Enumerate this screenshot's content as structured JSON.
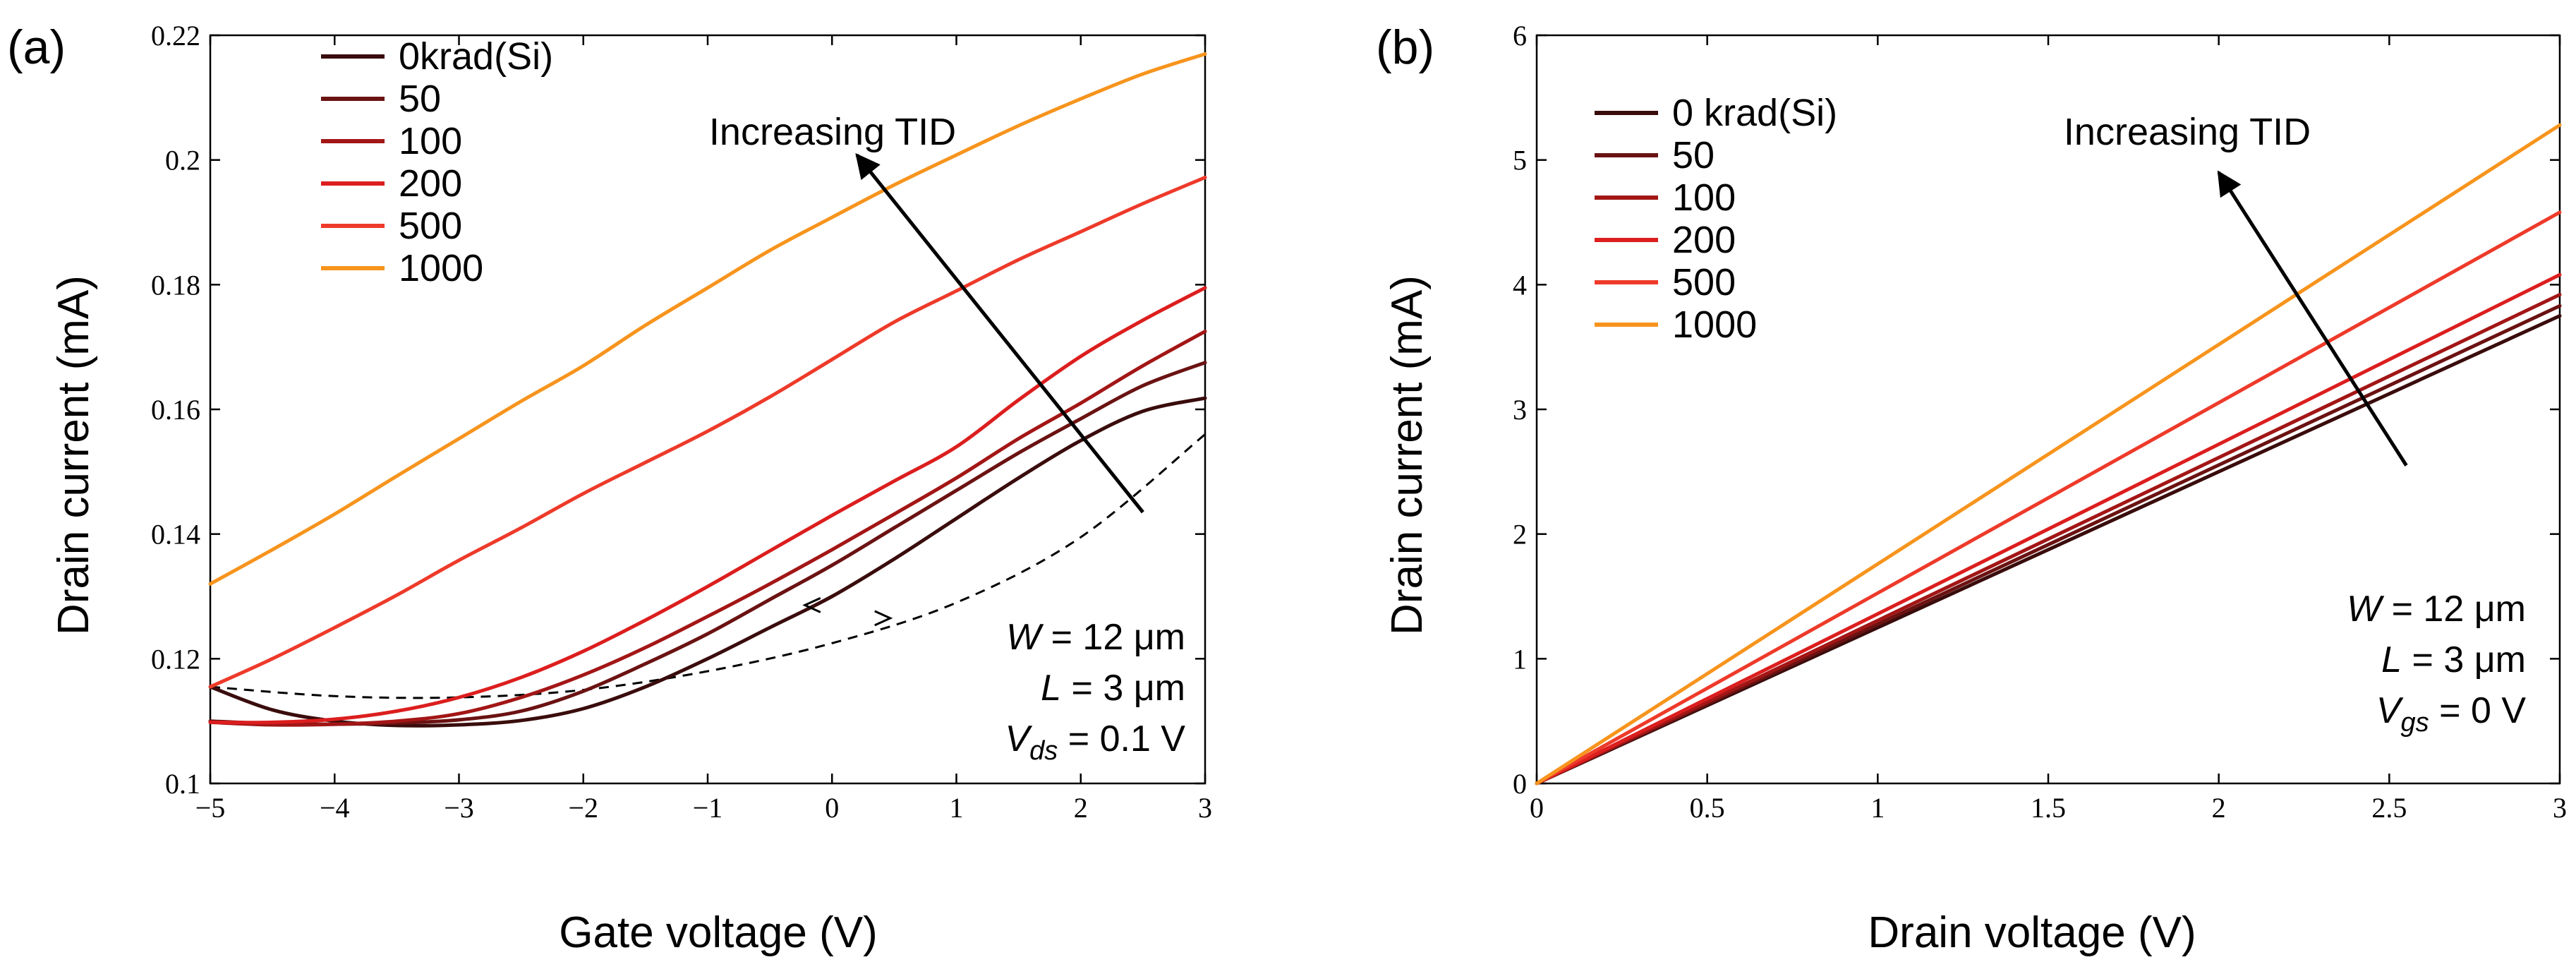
{
  "figure": {
    "background": "#ffffff"
  },
  "chart_data": [
    {
      "panel_label": "(a)",
      "type": "line",
      "xlabel": "Gate voltage (V)",
      "ylabel": "Drain current (mA)",
      "xlim": [
        -5,
        3
      ],
      "ylim": [
        0.1,
        0.22
      ],
      "xticks": [
        -5,
        -4,
        -3,
        -2,
        -1,
        0,
        1,
        2,
        3
      ],
      "yticks": [
        0.1,
        0.12,
        0.14,
        0.16,
        0.18,
        0.2,
        0.22
      ],
      "xtick_labels": [
        "−5",
        "−4",
        "−3",
        "−2",
        "−1",
        "0",
        "1",
        "2",
        "3"
      ],
      "ytick_labels": [
        "0.1",
        "0.12",
        "0.14",
        "0.16",
        "0.18",
        "0.2",
        "0.22"
      ],
      "legend": {
        "location": "top-left",
        "entries": [
          "0krad(Si)",
          "50",
          "100",
          "200",
          "500",
          "1000"
        ]
      },
      "x": [
        -5,
        -4.5,
        -4,
        -3.5,
        -3,
        -2.5,
        -2,
        -1.5,
        -1,
        -0.5,
        0,
        0.5,
        1,
        1.5,
        2,
        2.5,
        3
      ],
      "series": [
        {
          "name": "0krad(Si)",
          "color": "#3a0c0c",
          "values": [
            0.1155,
            0.1118,
            0.11,
            0.1093,
            0.1094,
            0.1101,
            0.112,
            0.1155,
            0.12,
            0.125,
            0.13,
            0.136,
            0.1425,
            0.149,
            0.155,
            0.1597,
            0.1618
          ]
        },
        {
          "name": "50",
          "color": "#6b1212",
          "values": [
            0.11,
            0.1096,
            0.1095,
            0.1097,
            0.1102,
            0.1116,
            0.1148,
            0.1192,
            0.124,
            0.1295,
            0.135,
            0.141,
            0.147,
            0.153,
            0.1585,
            0.1638,
            0.1675
          ]
        },
        {
          "name": "100",
          "color": "#a31616",
          "values": [
            0.1098,
            0.1094,
            0.1095,
            0.11,
            0.1112,
            0.1138,
            0.1174,
            0.1218,
            0.1268,
            0.132,
            0.1375,
            0.1432,
            0.149,
            0.1553,
            0.161,
            0.167,
            0.1725
          ]
        },
        {
          "name": "200",
          "color": "#dc1e1e",
          "values": [
            0.1098,
            0.1098,
            0.1103,
            0.1116,
            0.1138,
            0.117,
            0.1212,
            0.1262,
            0.1316,
            0.1373,
            0.143,
            0.1485,
            0.154,
            0.1615,
            0.1685,
            0.1743,
            0.1795
          ]
        },
        {
          "name": "500",
          "color": "#ee3a2a",
          "values": [
            0.1155,
            0.12,
            0.125,
            0.1302,
            0.1358,
            0.141,
            0.1465,
            0.1515,
            0.1565,
            0.162,
            0.168,
            0.174,
            0.179,
            0.184,
            0.1885,
            0.193,
            0.1972
          ]
        },
        {
          "name": "1000",
          "color": "#f7941d",
          "values": [
            0.132,
            0.1375,
            0.1432,
            0.1493,
            0.1553,
            0.1613,
            0.167,
            0.1735,
            0.1795,
            0.1855,
            0.1908,
            0.196,
            0.2008,
            0.2055,
            0.2098,
            0.2138,
            0.217
          ]
        }
      ],
      "reference_curve": {
        "style": "dashed",
        "color": "#000000",
        "x": [
          -5,
          -4,
          -3,
          -2,
          -1,
          0,
          1,
          2,
          3
        ],
        "values": [
          0.1155,
          0.114,
          0.1138,
          0.115,
          0.118,
          0.1225,
          0.129,
          0.1395,
          0.156
        ]
      },
      "annotations": {
        "arrow_label": "Increasing TID",
        "arrow": {
          "from": [
            2.5,
            0.1435
          ],
          "to": [
            0.2,
            0.2008
          ]
        },
        "small_arrows": [
          {
            "at": [
              -0.15,
              0.1286
            ],
            "direction": "left"
          },
          {
            "at": [
              0.4,
              0.1265
            ],
            "direction": "right"
          }
        ],
        "params": [
          {
            "symbol": "W",
            "sub": "",
            "text": " = 12 μm"
          },
          {
            "symbol": "L",
            "sub": "",
            "text": " = 3 μm"
          },
          {
            "symbol": "V",
            "sub": "ds",
            "text": " = 0.1 V"
          }
        ]
      }
    },
    {
      "panel_label": "(b)",
      "type": "line",
      "xlabel": "Drain voltage (V)",
      "ylabel": "Drain current (mA)",
      "xlim": [
        0,
        3
      ],
      "ylim": [
        0,
        6
      ],
      "xticks": [
        0,
        0.5,
        1,
        1.5,
        2,
        2.5,
        3
      ],
      "yticks": [
        0,
        1,
        2,
        3,
        4,
        5,
        6
      ],
      "xtick_labels": [
        "0",
        "0.5",
        "1",
        "1.5",
        "2",
        "2.5",
        "3"
      ],
      "ytick_labels": [
        "0",
        "1",
        "2",
        "3",
        "4",
        "5",
        "6"
      ],
      "legend": {
        "location": "top-left",
        "entries": [
          "0 krad(Si)",
          "50",
          "100",
          "200",
          "500",
          "1000"
        ]
      },
      "x": [
        0,
        3
      ],
      "series": [
        {
          "name": "0 krad(Si)",
          "color": "#3a0c0c",
          "values": [
            0,
            3.75
          ]
        },
        {
          "name": "50",
          "color": "#6b1212",
          "values": [
            0,
            3.83
          ]
        },
        {
          "name": "100",
          "color": "#a31616",
          "values": [
            0,
            3.92
          ]
        },
        {
          "name": "200",
          "color": "#dc1e1e",
          "values": [
            0,
            4.08
          ]
        },
        {
          "name": "500",
          "color": "#ee3a2a",
          "values": [
            0,
            4.58
          ]
        },
        {
          "name": "1000",
          "color": "#f7941d",
          "values": [
            0,
            5.28
          ]
        }
      ],
      "annotations": {
        "arrow_label": "Increasing TID",
        "arrow": {
          "from": [
            2.55,
            2.55
          ],
          "to": [
            2.0,
            4.9
          ]
        },
        "params": [
          {
            "symbol": "W",
            "sub": "",
            "text": " = 12 μm"
          },
          {
            "symbol": "L",
            "sub": "",
            "text": " = 3 μm"
          },
          {
            "symbol": "V",
            "sub": "gs",
            "text": " = 0 V"
          }
        ]
      }
    }
  ]
}
